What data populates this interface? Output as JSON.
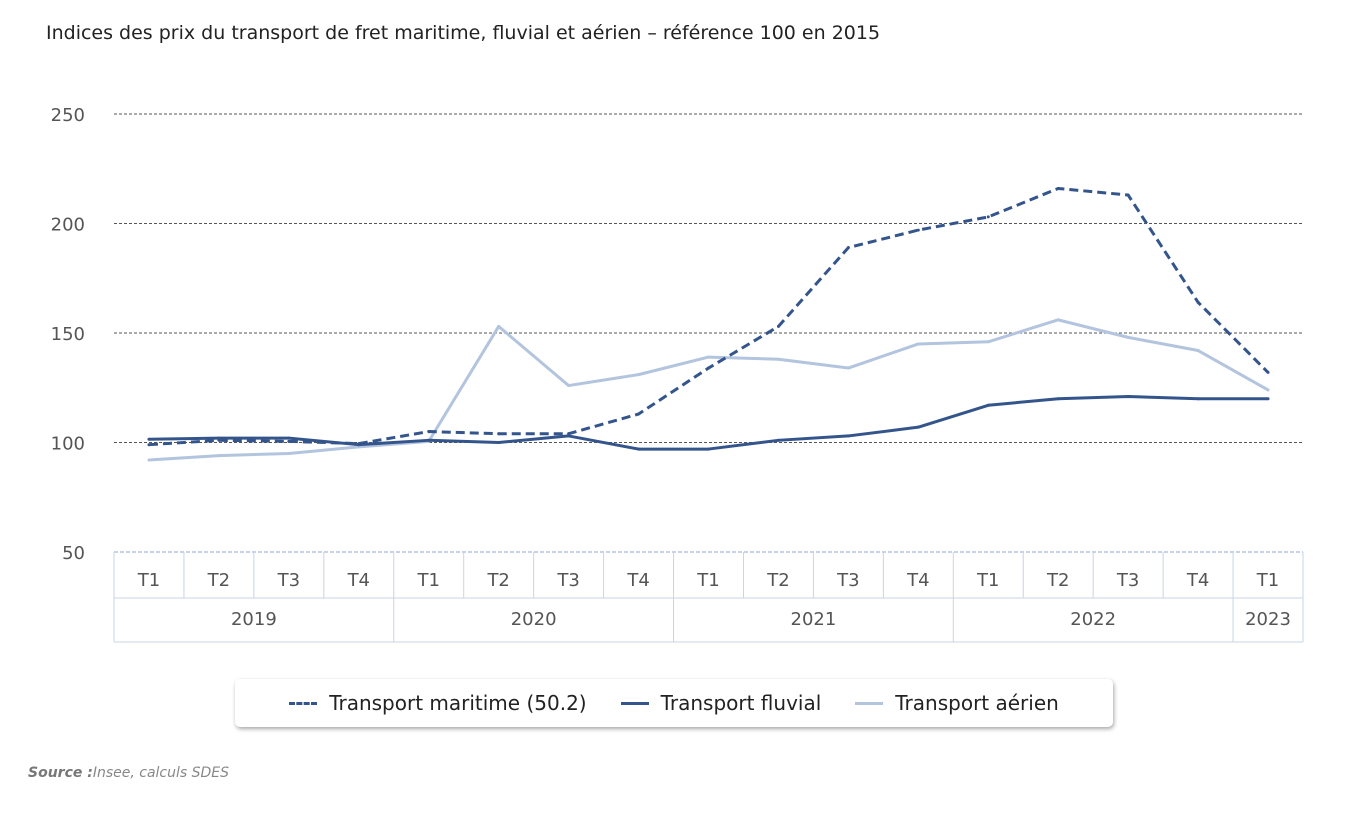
{
  "chart_data": {
    "type": "line",
    "title": "Indices des prix du transport de fret maritime, fluvial et aérien – référence 100 en 2015",
    "categories": [
      "T1",
      "T2",
      "T3",
      "T4",
      "T1",
      "T2",
      "T3",
      "T4",
      "T1",
      "T2",
      "T3",
      "T4",
      "T1",
      "T2",
      "T3",
      "T4",
      "T1"
    ],
    "groups": [
      {
        "label": "2019",
        "span": 4
      },
      {
        "label": "2020",
        "span": 4
      },
      {
        "label": "2021",
        "span": 4
      },
      {
        "label": "2022",
        "span": 4
      },
      {
        "label": "2023",
        "span": 1
      }
    ],
    "ylim": [
      50,
      250
    ],
    "yticks": [
      50,
      100,
      150,
      200,
      250
    ],
    "grid": true,
    "legend_position": "bottom",
    "series": [
      {
        "name": "Transport maritime (50.2)",
        "color": "#34558b",
        "dash": true,
        "values": [
          99,
          101,
          100.5,
          99.5,
          105,
          104,
          104,
          113,
          134,
          153,
          189,
          197,
          203,
          216,
          213,
          164,
          132
        ]
      },
      {
        "name": "Transport fluvial",
        "color": "#34558b",
        "dash": false,
        "values": [
          101.5,
          102,
          102,
          99,
          101,
          100,
          103,
          97,
          97,
          101,
          103,
          107,
          117,
          120,
          121,
          120,
          120
        ]
      },
      {
        "name": "Transport aérien",
        "color": "#b3c4de",
        "dash": false,
        "values": [
          92,
          94,
          95,
          98,
          100.5,
          153,
          126,
          131,
          139,
          138,
          134,
          145,
          146,
          156,
          148,
          142,
          124
        ]
      }
    ]
  },
  "source": {
    "label": "Source :",
    "text": "Insee, calculs SDES"
  }
}
